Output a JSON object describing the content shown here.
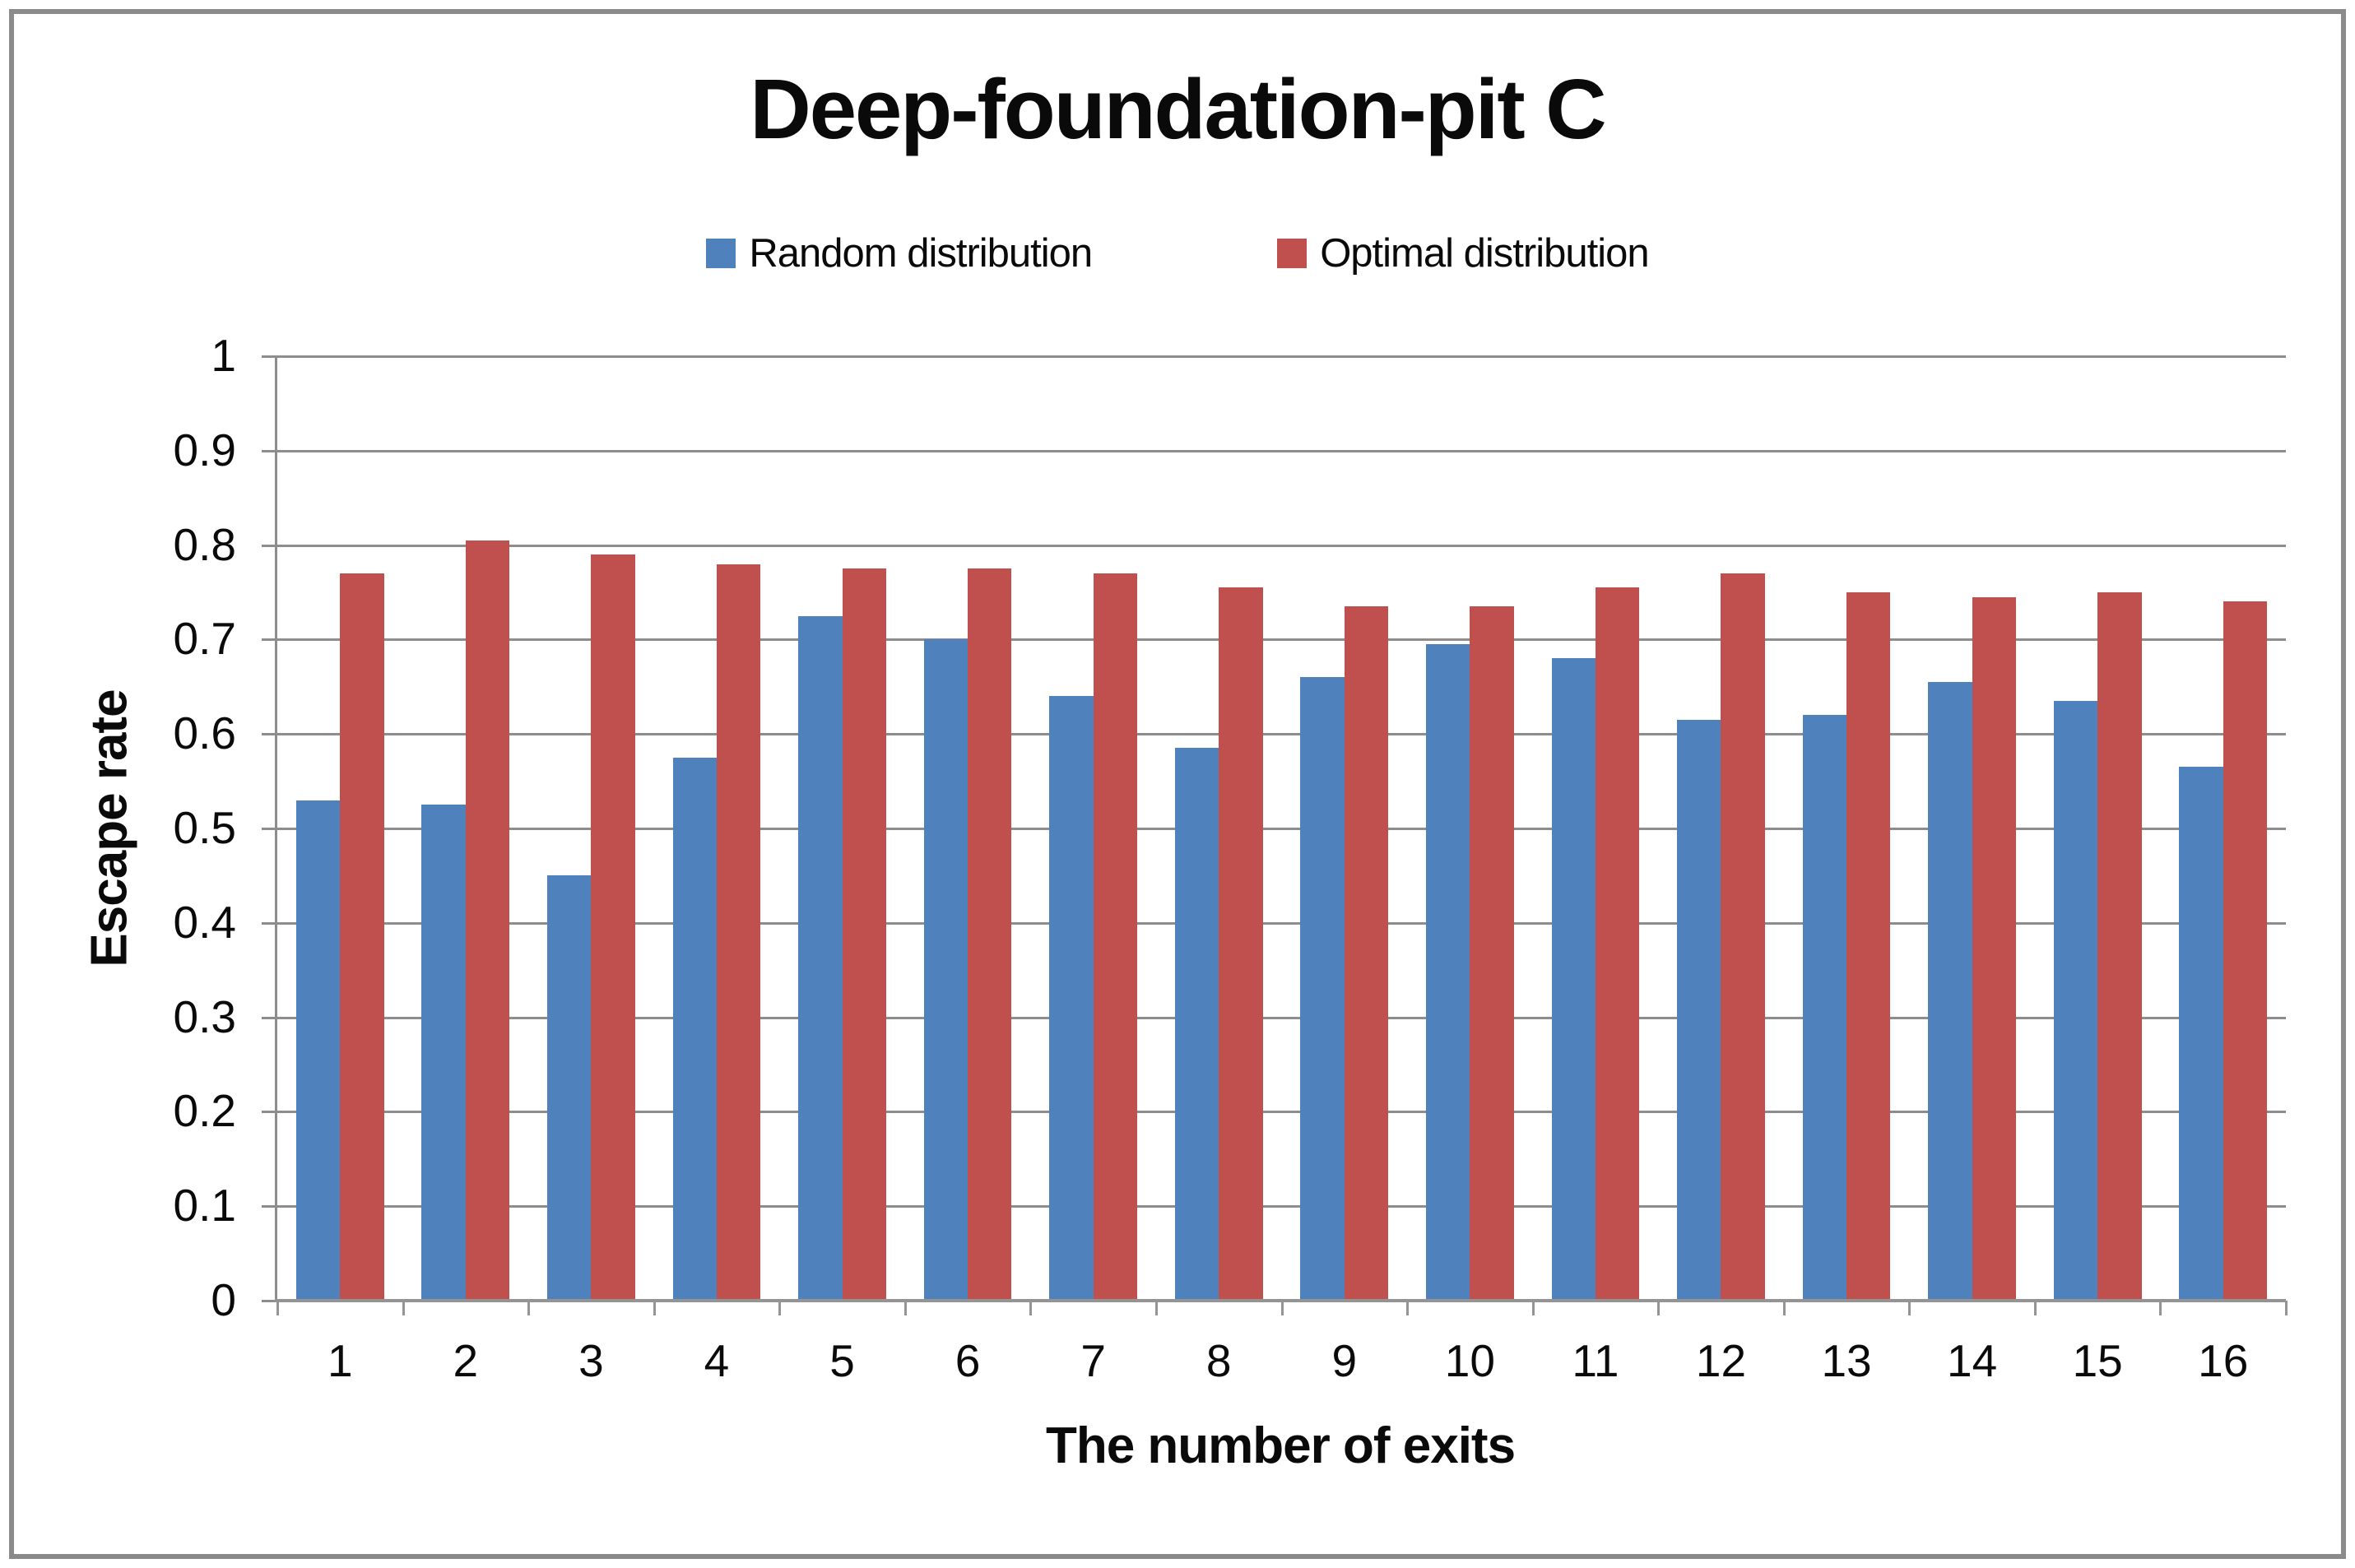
{
  "chart": {
    "title": "Deep-foundation-pit C",
    "ylabel": "Escape rate",
    "xlabel": "The number of exits",
    "legend": [
      {
        "label": "Random distribution",
        "color": "#4f81bd"
      },
      {
        "label": "Optimal distribution",
        "color": "#c0504d"
      }
    ],
    "colors": {
      "random_bar": "#4f81bd",
      "optimal_bar": "#c0504d",
      "gridline": "#8d8d8d",
      "axis_line": "#949494",
      "frame_border": "#8a8a8a",
      "text": "#0a0a0a",
      "background": "#ffffff"
    }
  },
  "chart_data": {
    "type": "bar",
    "title": "Deep-foundation-pit C",
    "xlabel": "The number of exits",
    "ylabel": "Escape rate",
    "categories": [
      "1",
      "2",
      "3",
      "4",
      "5",
      "6",
      "7",
      "8",
      "9",
      "10",
      "11",
      "12",
      "13",
      "14",
      "15",
      "16"
    ],
    "series": [
      {
        "name": "Random distribution",
        "color": "#4f81bd",
        "values": [
          0.53,
          0.525,
          0.45,
          0.575,
          0.725,
          0.7,
          0.64,
          0.585,
          0.66,
          0.695,
          0.68,
          0.615,
          0.62,
          0.655,
          0.635,
          0.565
        ]
      },
      {
        "name": "Optimal distribution",
        "color": "#c0504d",
        "values": [
          0.77,
          0.805,
          0.79,
          0.78,
          0.775,
          0.775,
          0.77,
          0.755,
          0.735,
          0.735,
          0.755,
          0.77,
          0.75,
          0.745,
          0.75,
          0.74
        ]
      }
    ],
    "ylim": [
      0,
      1
    ],
    "ytick_step": 0.1,
    "ytick_labels": [
      "0",
      "0.1",
      "0.2",
      "0.3",
      "0.4",
      "0.5",
      "0.6",
      "0.7",
      "0.8",
      "0.9",
      "1"
    ],
    "grid": true,
    "legend_position": "top-center"
  }
}
